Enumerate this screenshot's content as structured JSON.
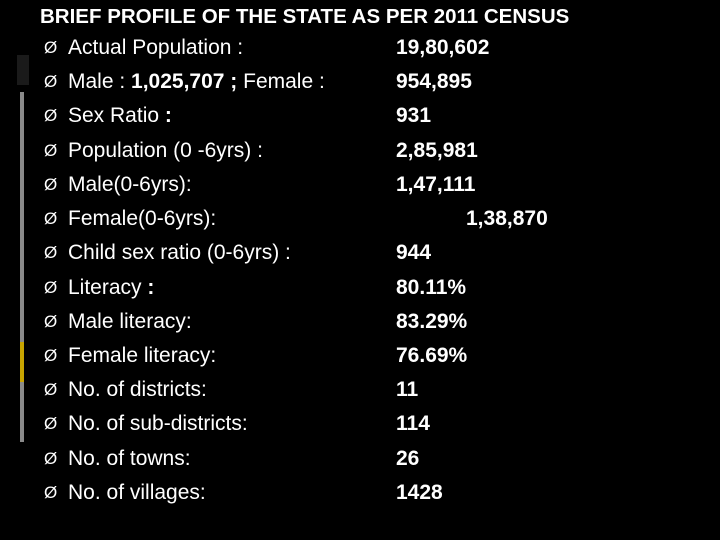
{
  "colors": {
    "background": "#000000",
    "text": "#ffffff",
    "strip_accent": "#c8a400",
    "strip_line": "#8a8a8a"
  },
  "title": "BRIEF PROFILE OF THE STATE AS PER 2011 CENSUS",
  "bullet_glyph": "Ø",
  "rows": [
    {
      "label": "Actual Population :",
      "value": "19,80,602"
    },
    {
      "label_parts": [
        "Male : ",
        "1,025,707 ;",
        " Female :"
      ],
      "value": "954,895"
    },
    {
      "label_parts": [
        "Sex Ratio ",
        ":",
        ""
      ],
      "value": "931"
    },
    {
      "label": "Population (0 -6yrs) :",
      "value": "2,85,981"
    },
    {
      "label": "Male(0-6yrs):",
      "value": "1,47,111"
    },
    {
      "label": "Female(0-6yrs):",
      "value": "1,38,870"
    },
    {
      "label": "Child sex ratio (0-6yrs) :",
      "value": "944"
    },
    {
      "label_parts": [
        "Literacy  ",
        ":",
        ""
      ],
      "value": "80.11%"
    },
    {
      "label": "Male literacy:",
      "value": "83.29%"
    },
    {
      "label": "Female literacy:",
      "value": "76.69%"
    },
    {
      "label": "No. of districts:",
      "value": "11"
    },
    {
      "label": "No. of sub-districts:",
      "value": "114"
    },
    {
      "label": "No. of towns:",
      "value": "26"
    },
    {
      "label": "No. of villages:",
      "value": "1428"
    }
  ]
}
